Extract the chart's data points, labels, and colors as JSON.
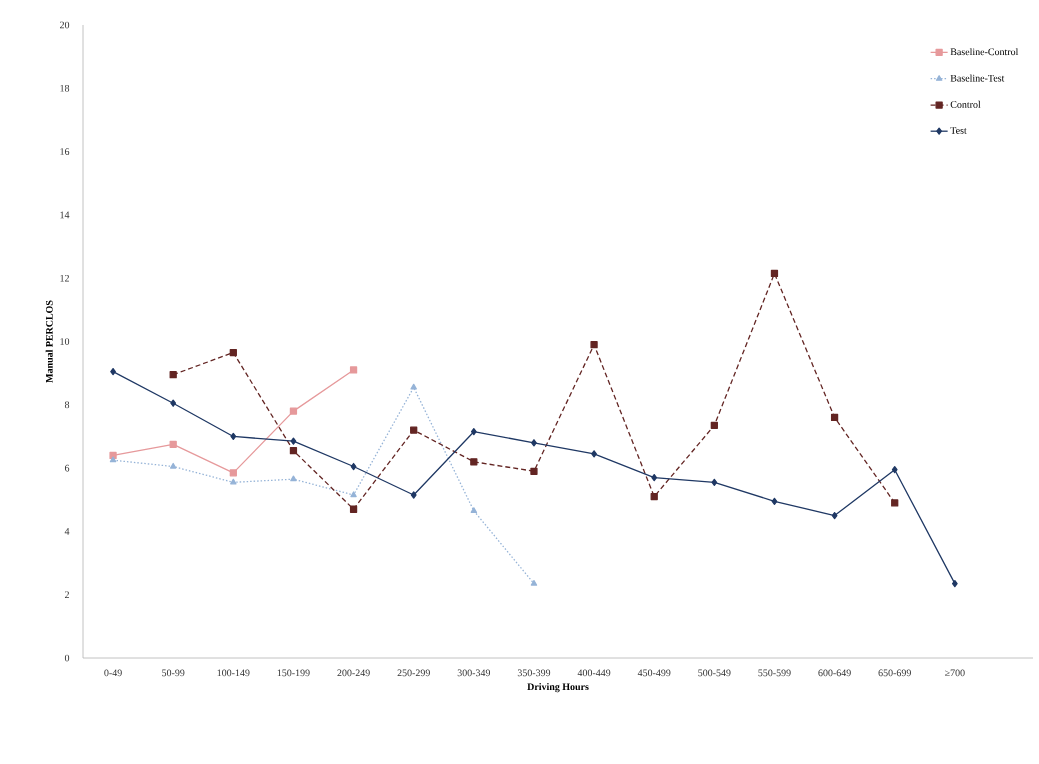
{
  "chart_data": {
    "type": "line",
    "xlabel": "Driving Hours",
    "ylabel": "Manual PERCLOS",
    "categories": [
      "0-49",
      "50-99",
      "100-149",
      "150-199",
      "200-249",
      "250-299",
      "300-349",
      "350-399",
      "400-449",
      "450-499",
      "500-549",
      "550-599",
      "600-649",
      "650-699",
      "≥700"
    ],
    "ylim": [
      0,
      20
    ],
    "yticks": [
      0,
      2,
      4,
      6,
      8,
      10,
      12,
      14,
      16,
      18,
      20
    ],
    "grid": false,
    "legend": "top right",
    "series": [
      {
        "name": "Baseline-Control",
        "color": "#e6999b",
        "marker": "square",
        "line_style": "solid",
        "values": [
          6.4,
          6.75,
          5.85,
          7.8,
          9.1,
          null,
          null,
          null,
          null,
          null,
          null,
          null,
          null,
          null,
          null
        ]
      },
      {
        "name": "Baseline-Test",
        "color": "#95b3d7",
        "marker": "triangle",
        "line_style": "dotted",
        "values": [
          6.25,
          6.05,
          5.55,
          5.65,
          5.15,
          8.55,
          4.65,
          2.35,
          null,
          null,
          null,
          null,
          null,
          null,
          null
        ]
      },
      {
        "name": "Control",
        "color": "#632523",
        "marker": "square",
        "line_style": "dashed",
        "values": [
          null,
          8.95,
          9.65,
          6.55,
          4.7,
          7.2,
          6.2,
          5.9,
          9.9,
          5.1,
          7.35,
          12.15,
          7.6,
          4.9,
          null
        ]
      },
      {
        "name": "Test",
        "color": "#1f3864",
        "marker": "diamond",
        "line_style": "solid",
        "values": [
          9.05,
          8.05,
          7.0,
          6.85,
          6.05,
          5.15,
          7.15,
          6.8,
          6.45,
          5.7,
          5.55,
          4.95,
          4.5,
          5.95,
          2.35
        ]
      }
    ]
  }
}
